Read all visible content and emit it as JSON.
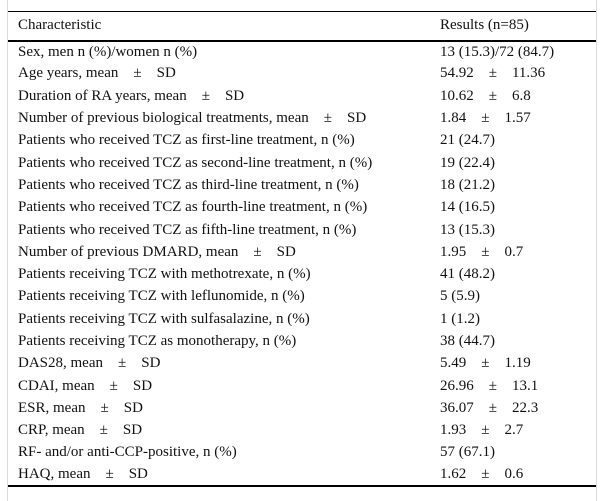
{
  "page": {
    "background_color": "#ffffff",
    "frame_border_color": "#d9d9d9",
    "rule_color": "#000000",
    "text_color": "#111111"
  },
  "table": {
    "columns": [
      {
        "label": "Characteristic"
      },
      {
        "label": "Results (n=85)"
      }
    ],
    "rows": [
      {
        "characteristic": "Sex, men n (%)/women n (%)",
        "result": "13 (15.3)/72 (84.7)"
      },
      {
        "characteristic": "Age years, mean    ±    SD",
        "result": "54.92    ±    11.36"
      },
      {
        "characteristic": "Duration of RA years, mean    ±    SD",
        "result": "10.62    ±    6.8"
      },
      {
        "characteristic": "Number of previous biological treatments, mean    ±    SD",
        "result": "1.84    ±    1.57"
      },
      {
        "characteristic": "Patients who received TCZ as first-line treatment, n (%)",
        "result": "21 (24.7)"
      },
      {
        "characteristic": "Patients who received TCZ as second-line treatment, n (%)",
        "result": "19 (22.4)"
      },
      {
        "characteristic": "Patients who received TCZ as third-line treatment, n (%)",
        "result": "18 (21.2)"
      },
      {
        "characteristic": "Patients who received TCZ as fourth-line treatment, n (%)",
        "result": "14 (16.5)"
      },
      {
        "characteristic": "Patients who received TCZ as fifth-line treatment, n (%)",
        "result": "13 (15.3)"
      },
      {
        "characteristic": "Number of previous DMARD, mean    ±    SD",
        "result": "1.95    ±    0.7"
      },
      {
        "characteristic": "Patients receiving TCZ with methotrexate, n (%)",
        "result": "41 (48.2)"
      },
      {
        "characteristic": "Patients receiving TCZ with leflunomide, n (%)",
        "result": "5 (5.9)"
      },
      {
        "characteristic": "Patients receiving TCZ with sulfasalazine, n (%)",
        "result": "1 (1.2)"
      },
      {
        "characteristic": "Patients receiving TCZ as monotherapy, n (%)",
        "result": "38 (44.7)"
      },
      {
        "characteristic": "DAS28, mean    ±    SD",
        "result": "5.49    ±    1.19"
      },
      {
        "characteristic": "CDAI, mean    ±    SD",
        "result": "26.96    ±    13.1"
      },
      {
        "characteristic": "ESR, mean    ±    SD",
        "result": "36.07    ±    22.3"
      },
      {
        "characteristic": "CRP, mean    ±    SD",
        "result": "1.93    ±    2.7"
      },
      {
        "characteristic": "RF- and/or anti-CCP-positive, n (%)",
        "result": "57 (67.1)"
      },
      {
        "characteristic": "HAQ, mean    ±    SD",
        "result": "1.62    ±    0.6"
      }
    ]
  }
}
